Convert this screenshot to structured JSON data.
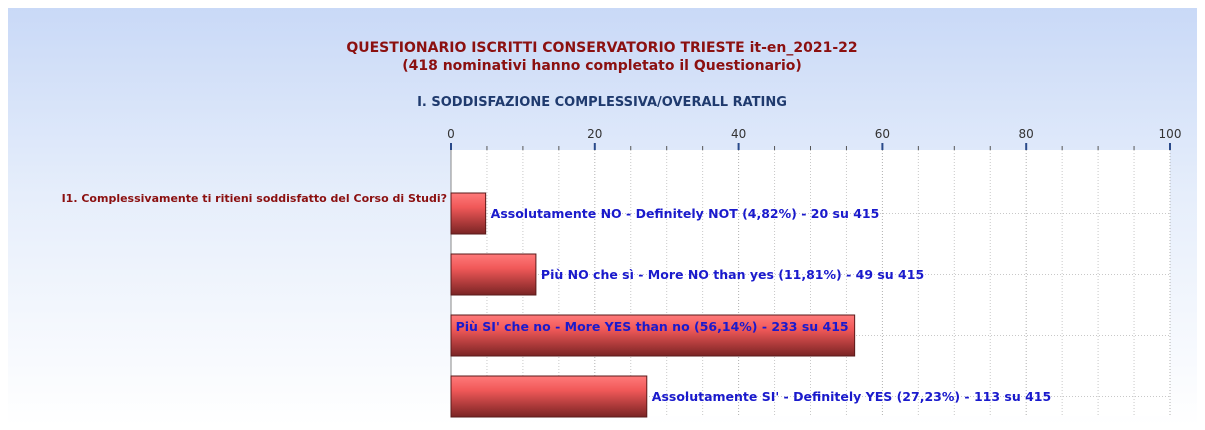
{
  "chart_data": {
    "type": "bar",
    "orientation": "horizontal",
    "title": "QUESTIONARIO ISCRITTI CONSERVATORIO TRIESTE it-en_2021-22",
    "subtitle": "(418 nominativi hanno completato il Questionario)",
    "heading": "I. SODDISFAZIONE COMPLESSIVA/OVERALL RATING",
    "category": "I1. Complessivamente ti ritieni soddisfatto del Corso di Studi?",
    "values": [
      4.82,
      11.81,
      56.14,
      27.23
    ],
    "value_labels": [
      "Assolutamente NO - Definitely NOT (4,82%) - 20 su 415",
      "Più NO che sì - More NO than yes (11,81%) - 49 su 415",
      "Più SI' che no - More YES than no (56,14%) - 233 su 415",
      "Assolutamente SI' - Definitely YES (27,23%) - 113 su 415"
    ],
    "color": "#e04848",
    "xlim": [
      0,
      100
    ],
    "xticks": [
      0,
      20,
      40,
      60,
      80,
      100
    ],
    "xminorticks": [
      5,
      10,
      15,
      25,
      30,
      35,
      45,
      50,
      55,
      65,
      70,
      75,
      85,
      90,
      95
    ],
    "grid": true
  }
}
